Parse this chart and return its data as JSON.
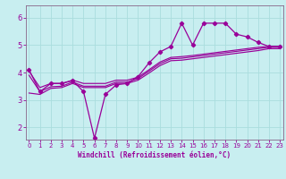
{
  "xlabel": "Windchill (Refroidissement éolien,°C)",
  "bg_color": "#c8eef0",
  "grid_color": "#aadddd",
  "line_color": "#990099",
  "spine_color": "#886688",
  "x_ticks": [
    0,
    1,
    2,
    3,
    4,
    5,
    6,
    7,
    8,
    9,
    10,
    11,
    12,
    13,
    14,
    15,
    16,
    17,
    18,
    19,
    20,
    21,
    22,
    23
  ],
  "y_ticks": [
    2,
    3,
    4,
    5,
    6
  ],
  "xlim": [
    -0.3,
    23.3
  ],
  "ylim": [
    1.55,
    6.45
  ],
  "series": [
    {
      "x": [
        0,
        1,
        2,
        3,
        4,
        5,
        6,
        7,
        8,
        9,
        10,
        11,
        12,
        13,
        14,
        15,
        16,
        17,
        18,
        19,
        20,
        21,
        22,
        23
      ],
      "y": [
        4.1,
        3.3,
        3.6,
        3.6,
        3.7,
        3.3,
        1.6,
        3.2,
        3.55,
        3.6,
        3.85,
        4.35,
        4.75,
        4.95,
        5.8,
        5.0,
        5.8,
        5.8,
        5.8,
        5.4,
        5.3,
        5.1,
        4.95,
        4.95
      ],
      "marker": "D",
      "markersize": 2.2,
      "lw": 0.9
    },
    {
      "x": [
        0,
        1,
        2,
        3,
        4,
        5,
        6,
        7,
        8,
        9,
        10,
        11,
        12,
        13,
        14,
        15,
        16,
        17,
        18,
        19,
        20,
        21,
        22,
        23
      ],
      "y": [
        4.05,
        3.45,
        3.6,
        3.6,
        3.72,
        3.6,
        3.6,
        3.6,
        3.72,
        3.72,
        3.83,
        4.1,
        4.38,
        4.55,
        4.58,
        4.62,
        4.67,
        4.72,
        4.77,
        4.82,
        4.87,
        4.92,
        4.95,
        4.95
      ],
      "marker": null,
      "markersize": 0,
      "lw": 0.85
    },
    {
      "x": [
        0,
        1,
        2,
        3,
        4,
        5,
        6,
        7,
        8,
        9,
        10,
        11,
        12,
        13,
        14,
        15,
        16,
        17,
        18,
        19,
        20,
        21,
        22,
        23
      ],
      "y": [
        3.9,
        3.3,
        3.48,
        3.5,
        3.65,
        3.5,
        3.5,
        3.5,
        3.65,
        3.65,
        3.78,
        4.05,
        4.32,
        4.5,
        4.52,
        4.57,
        4.62,
        4.67,
        4.72,
        4.77,
        4.82,
        4.87,
        4.92,
        4.92
      ],
      "marker": null,
      "markersize": 0,
      "lw": 0.85
    },
    {
      "x": [
        0,
        1,
        2,
        3,
        4,
        5,
        6,
        7,
        8,
        9,
        10,
        11,
        12,
        13,
        14,
        15,
        16,
        17,
        18,
        19,
        20,
        21,
        22,
        23
      ],
      "y": [
        3.25,
        3.2,
        3.42,
        3.45,
        3.6,
        3.45,
        3.45,
        3.45,
        3.6,
        3.6,
        3.72,
        3.98,
        4.25,
        4.43,
        4.45,
        4.5,
        4.55,
        4.6,
        4.65,
        4.7,
        4.75,
        4.8,
        4.87,
        4.87
      ],
      "marker": null,
      "markersize": 0,
      "lw": 0.85
    }
  ]
}
